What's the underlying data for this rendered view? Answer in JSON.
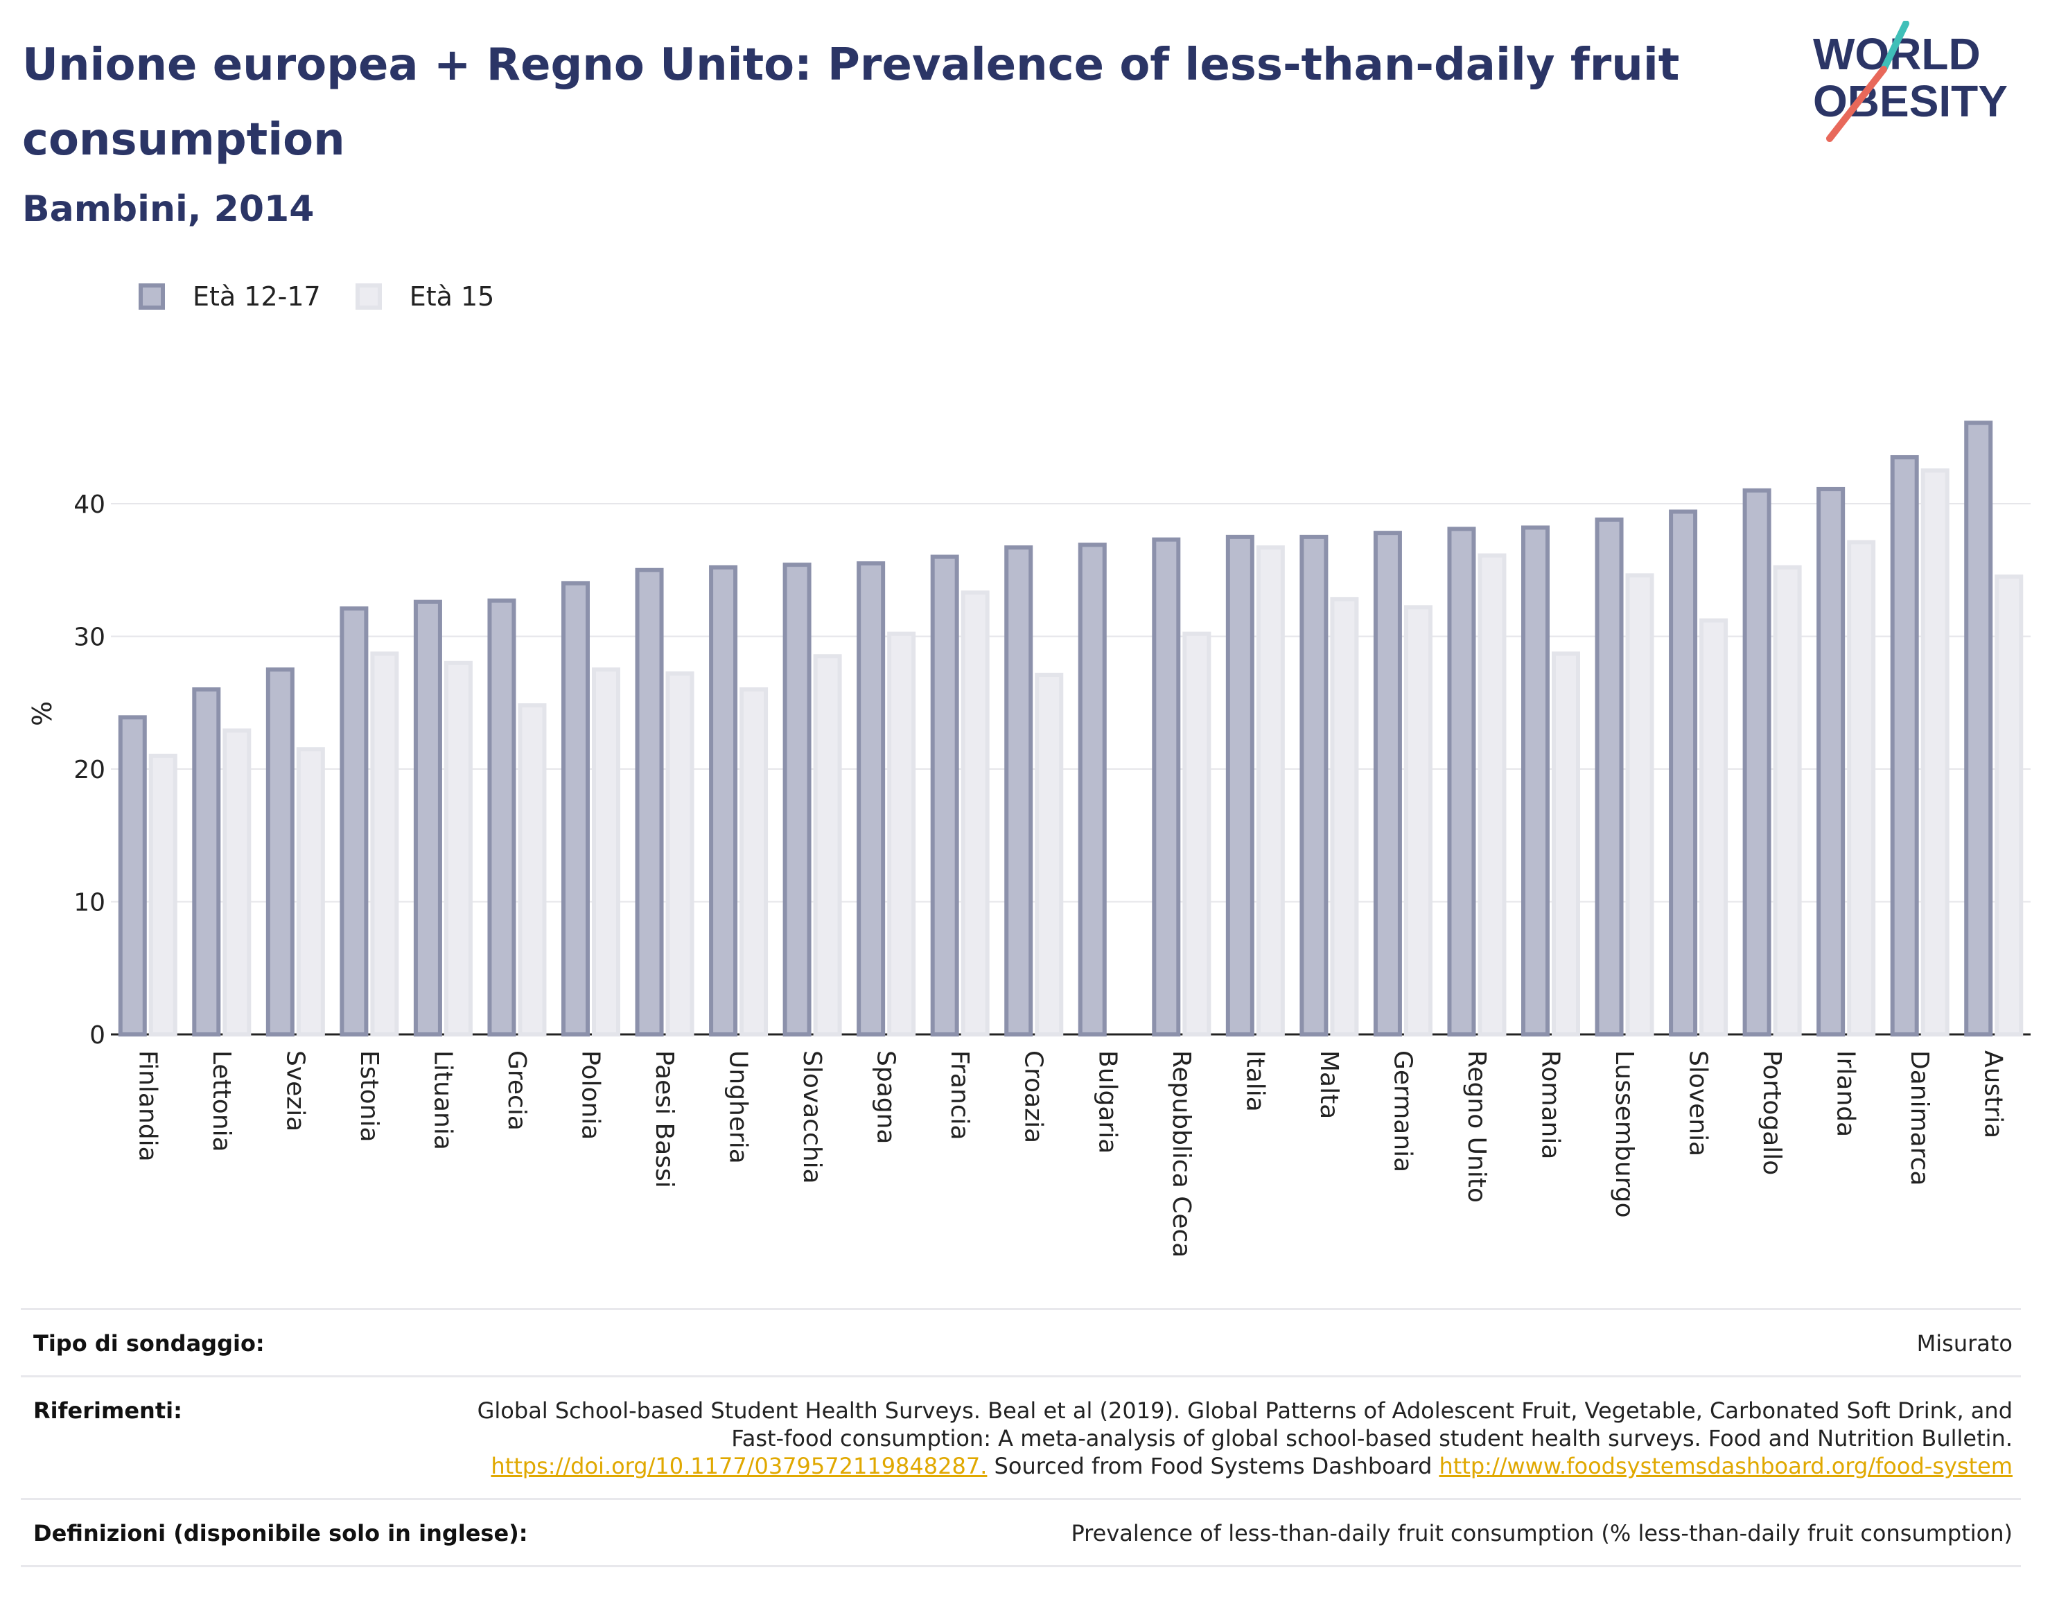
{
  "header": {
    "title": "Unione europea + Regno Unito: Prevalence of less-than-daily fruit consumption",
    "subtitle": "Bambini, 2014",
    "logo_line1": "WORLD",
    "logo_line2": "OBESITY"
  },
  "colors": {
    "series1_fill": "#b9bcce",
    "series1_stroke": "#8c91ab",
    "series2_fill": "#ececf1",
    "series2_stroke": "#e3e4ea",
    "title": "#2b3566",
    "logo_teal": "#3fbfb8",
    "logo_red": "#e8685a",
    "link": "#e0a800"
  },
  "chart_data": {
    "type": "bar",
    "ylabel": "%",
    "ylim": [
      0,
      50
    ],
    "yticks": [
      0,
      10,
      20,
      30,
      40
    ],
    "grid": true,
    "legend_position": "top-left",
    "categories": [
      "Finlandia",
      "Lettonia",
      "Svezia",
      "Estonia",
      "Lituania",
      "Grecia",
      "Polonia",
      "Paesi Bassi",
      "Ungheria",
      "Slovacchia",
      "Spagna",
      "Francia",
      "Croazia",
      "Bulgaria",
      "Repubblica Ceca",
      "Italia",
      "Malta",
      "Germania",
      "Regno Unito",
      "Romania",
      "Lussemburgo",
      "Slovenia",
      "Portogallo",
      "Irlanda",
      "Danimarca",
      "Austria"
    ],
    "series": [
      {
        "name": "Età 12-17",
        "values": [
          23.9,
          26.0,
          27.5,
          32.1,
          32.6,
          32.7,
          34.0,
          35.0,
          35.2,
          35.4,
          35.5,
          36.0,
          36.7,
          36.9,
          37.3,
          37.5,
          37.5,
          37.8,
          38.1,
          38.2,
          38.8,
          39.4,
          41.0,
          41.1,
          43.5,
          46.1
        ]
      },
      {
        "name": "Età 15",
        "values": [
          21.0,
          22.9,
          21.5,
          28.7,
          28.0,
          24.8,
          27.5,
          27.2,
          26.0,
          28.5,
          30.2,
          33.3,
          27.1,
          null,
          30.2,
          36.7,
          32.8,
          32.2,
          36.1,
          28.7,
          34.6,
          31.2,
          35.2,
          37.1,
          42.5,
          34.5
        ]
      }
    ]
  },
  "info": {
    "survey_label": "Tipo di sondaggio:",
    "survey_value": "Misurato",
    "refs_label": "Riferimenti:",
    "refs_text1": "Global School-based Student Health Surveys. Beal et al (2019). Global Patterns of Adolescent Fruit, Vegetable, Carbonated Soft Drink, and Fast-food consumption: A meta-analysis of global school-based student health surveys. Food and Nutrition Bulletin.",
    "refs_link1": "https://doi.org/10.1177/0379572119848287.",
    "refs_text2": "Sourced from Food Systems Dashboard",
    "refs_link2": "http://www.foodsystemsdashboard.org/food-system",
    "defs_label": "Definizioni (disponibile solo in inglese):",
    "defs_value": "Prevalence of less-than-daily fruit consumption (% less-than-daily fruit consumption)"
  }
}
